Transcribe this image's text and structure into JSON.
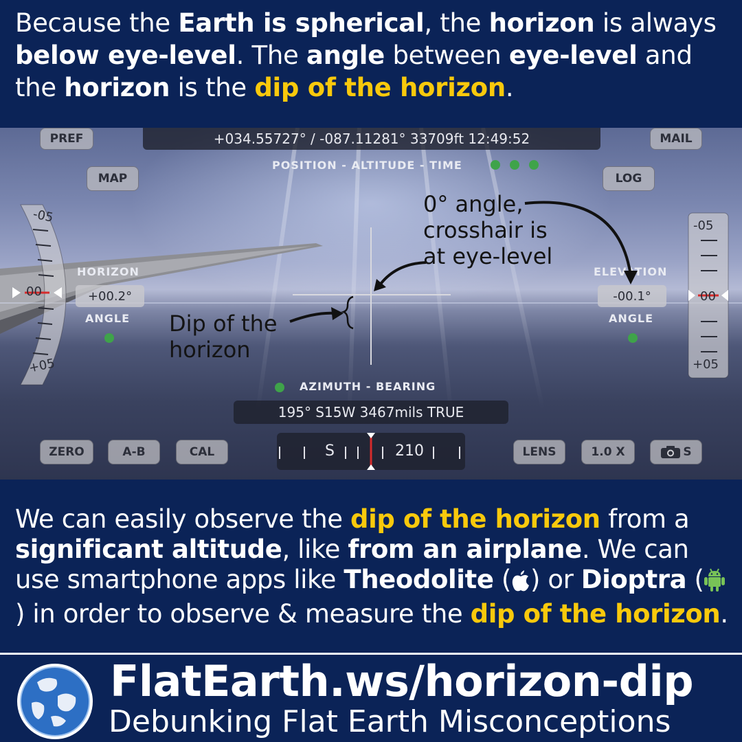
{
  "intro": {
    "t1": "Because the ",
    "b1": "Earth is spherical",
    "t2": ", the ",
    "b2": "horizon",
    "t3": " is always ",
    "b3": "below eye-level",
    "t4": ". The ",
    "b4": "angle",
    "t5": " between ",
    "b5": "eye-level",
    "t6": " and the ",
    "b6": "horizon",
    "t7": " is the ",
    "y1": "dip of the horizon",
    "t8": "."
  },
  "hud": {
    "buttons": {
      "pref": "PREF",
      "mail": "MAIL",
      "map": "MAP",
      "log": "LOG",
      "zero": "ZERO",
      "ab": "A-B",
      "cal": "CAL",
      "lens": "LENS",
      "zoom": "1.0 X",
      "camera_s": "S"
    },
    "status_bar": "+034.55727° / -087.11281°     33709ft     12:49:52",
    "status_label": "POSITION - ALTITUDE - TIME",
    "left_gauge": {
      "top": "-05",
      "mid": "00",
      "bottom": "+05"
    },
    "right_gauge": {
      "top": "-05",
      "mid": "00",
      "bottom": "+05"
    },
    "horizon_label": "HORIZON",
    "horizon_value": "+00.2°",
    "horizon_angle_label": "ANGLE",
    "elevation_label": "ELEVATION",
    "elevation_value": "-00.1°",
    "elevation_angle_label": "ANGLE",
    "azimuth_label": "AZIMUTH - BEARING",
    "azimuth_value": "195° S15W  3467mils  TRUE",
    "compass": {
      "s": "S",
      "deg": "210"
    },
    "annot_zero_1": "0° angle,",
    "annot_zero_2": "crosshair is",
    "annot_zero_3": "at eye-level",
    "annot_dip_1": "Dip of the",
    "annot_dip_2": "horizon",
    "colors": {
      "indicator": "#3fa34a",
      "highlight": "#f9c90c",
      "background": "#0b2357",
      "red_marker": "#d62b2b"
    }
  },
  "body": {
    "t1": "We can easily observe the ",
    "y1": "dip of the horizon",
    "t2": " from a ",
    "b1": "significant altitude",
    "t3": ", like ",
    "b2": "from an airplane",
    "t4": ". We can use smartphone apps like ",
    "b3": "Theodolite",
    "t5": " (",
    "t6": ") or ",
    "b4": "Dioptra",
    "t7": " (",
    "t8": ") in order to observe & measure the ",
    "y2": "dip of the horizon",
    "t9": ".",
    "icons": [
      "apple-icon",
      "android-icon"
    ]
  },
  "footer": {
    "title": "FlatEarth.ws/horizon-dip",
    "subtitle": "Debunking Flat Earth Misconceptions"
  }
}
